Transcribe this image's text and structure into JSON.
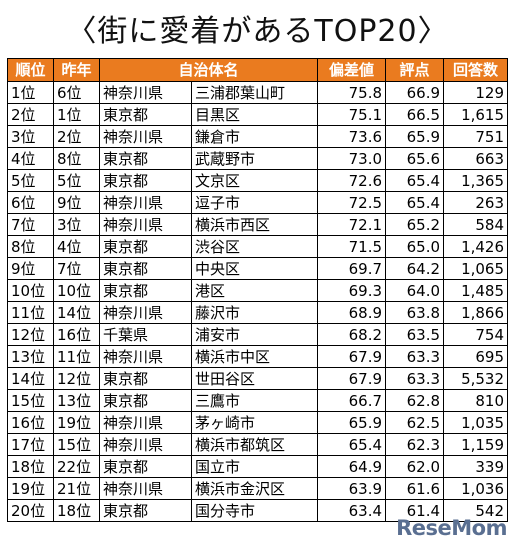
{
  "title": "〈街に愛着があるTOP20〉",
  "columns": [
    "順位",
    "昨年",
    "自治体名",
    "",
    "偏差値",
    "評点",
    "回答数"
  ],
  "rows": [
    {
      "rank": "1位",
      "prev": "6位",
      "pref": "神奈川県",
      "city": "三浦郡葉山町",
      "dev": "75.8",
      "score": "66.9",
      "count": "129"
    },
    {
      "rank": "2位",
      "prev": "1位",
      "pref": "東京都",
      "city": "目黒区",
      "dev": "75.1",
      "score": "66.5",
      "count": "1,615"
    },
    {
      "rank": "3位",
      "prev": "2位",
      "pref": "神奈川県",
      "city": "鎌倉市",
      "dev": "73.6",
      "score": "65.9",
      "count": "751"
    },
    {
      "rank": "4位",
      "prev": "8位",
      "pref": "東京都",
      "city": "武蔵野市",
      "dev": "73.0",
      "score": "65.6",
      "count": "663"
    },
    {
      "rank": "5位",
      "prev": "5位",
      "pref": "東京都",
      "city": "文京区",
      "dev": "72.6",
      "score": "65.4",
      "count": "1,365"
    },
    {
      "rank": "6位",
      "prev": "9位",
      "pref": "神奈川県",
      "city": "逗子市",
      "dev": "72.5",
      "score": "65.4",
      "count": "263"
    },
    {
      "rank": "7位",
      "prev": "3位",
      "pref": "神奈川県",
      "city": "横浜市西区",
      "dev": "72.1",
      "score": "65.2",
      "count": "584"
    },
    {
      "rank": "8位",
      "prev": "4位",
      "pref": "東京都",
      "city": "渋谷区",
      "dev": "71.5",
      "score": "65.0",
      "count": "1,426"
    },
    {
      "rank": "9位",
      "prev": "7位",
      "pref": "東京都",
      "city": "中央区",
      "dev": "69.7",
      "score": "64.2",
      "count": "1,065"
    },
    {
      "rank": "10位",
      "prev": "10位",
      "pref": "東京都",
      "city": "港区",
      "dev": "69.3",
      "score": "64.0",
      "count": "1,485"
    },
    {
      "rank": "11位",
      "prev": "14位",
      "pref": "神奈川県",
      "city": "藤沢市",
      "dev": "68.9",
      "score": "63.8",
      "count": "1,866"
    },
    {
      "rank": "12位",
      "prev": "16位",
      "pref": "千葉県",
      "city": "浦安市",
      "dev": "68.2",
      "score": "63.5",
      "count": "754"
    },
    {
      "rank": "13位",
      "prev": "11位",
      "pref": "神奈川県",
      "city": "横浜市中区",
      "dev": "67.9",
      "score": "63.3",
      "count": "695"
    },
    {
      "rank": "14位",
      "prev": "12位",
      "pref": "東京都",
      "city": "世田谷区",
      "dev": "67.9",
      "score": "63.3",
      "count": "5,532"
    },
    {
      "rank": "15位",
      "prev": "13位",
      "pref": "東京都",
      "city": "三鷹市",
      "dev": "66.7",
      "score": "62.8",
      "count": "810"
    },
    {
      "rank": "16位",
      "prev": "19位",
      "pref": "神奈川県",
      "city": "茅ヶ崎市",
      "dev": "65.9",
      "score": "62.5",
      "count": "1,035"
    },
    {
      "rank": "17位",
      "prev": "15位",
      "pref": "神奈川県",
      "city": "横浜市都筑区",
      "dev": "65.4",
      "score": "62.3",
      "count": "1,159"
    },
    {
      "rank": "18位",
      "prev": "22位",
      "pref": "東京都",
      "city": "国立市",
      "dev": "64.9",
      "score": "62.0",
      "count": "339"
    },
    {
      "rank": "19位",
      "prev": "21位",
      "pref": "神奈川県",
      "city": "横浜市金沢区",
      "dev": "63.9",
      "score": "61.6",
      "count": "1,036"
    },
    {
      "rank": "20位",
      "prev": "18位",
      "pref": "東京都",
      "city": "国分寺市",
      "dev": "63.4",
      "score": "61.4",
      "count": "542"
    }
  ],
  "logo": "ReseMom",
  "colors": {
    "header_bg": "#ea7b1f",
    "header_text": "#ffffff"
  }
}
